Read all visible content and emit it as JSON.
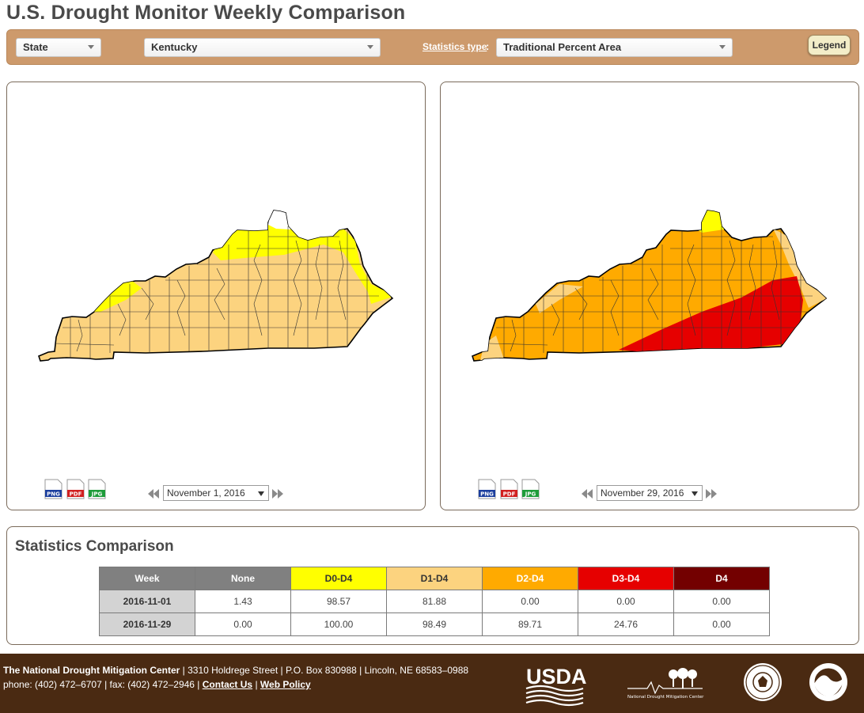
{
  "page": {
    "title": "U.S. Drought Monitor Weekly Comparison"
  },
  "toolbar": {
    "area_type": "State",
    "area_name": "Kentucky",
    "stats_type_label": "Statistics type",
    "stats_type_value": "Traditional Percent Area",
    "legend_button": "Legend"
  },
  "maps": [
    {
      "date": "November 1, 2016",
      "downloads": [
        "PNG",
        "PDF",
        "JPG"
      ]
    },
    {
      "date": "November 29, 2016",
      "downloads": [
        "PNG",
        "PDF",
        "JPG"
      ]
    }
  ],
  "stats": {
    "title": "Statistics Comparison",
    "headers": [
      "Week",
      "None",
      "D0-D4",
      "D1-D4",
      "D2-D4",
      "D3-D4",
      "D4"
    ],
    "header_colors": [
      "#808080",
      "#808080",
      "#ffff00",
      "#fcd37f",
      "#ffaa00",
      "#e60000",
      "#730000"
    ],
    "header_text_colors": [
      "#ffffff",
      "#ffffff",
      "#333333",
      "#333333",
      "#ffffff",
      "#ffffff",
      "#ffffff"
    ],
    "rows": [
      {
        "week": "2016-11-01",
        "values": [
          "1.43",
          "98.57",
          "81.88",
          "0.00",
          "0.00",
          "0.00"
        ]
      },
      {
        "week": "2016-11-29",
        "values": [
          "0.00",
          "100.00",
          "98.49",
          "89.71",
          "24.76",
          "0.00"
        ]
      }
    ]
  },
  "footer": {
    "org": "The National Drought Mitigation Center",
    "address": " | 3310 Holdrege Street | P.O. Box 830988 | Lincoln, NE 68583–0988",
    "phone": "phone: (402) 472–6707 | fax: (402) 472–2946 | ",
    "contact_link": "Contact Us",
    "separator": " | ",
    "policy_link": "Web Policy",
    "logos": {
      "usda": "USDA",
      "ndmc": "National Drought Mitigation Center"
    }
  },
  "colors": {
    "none": "#ffffff",
    "d0": "#ffff00",
    "d1": "#fcd37f",
    "d2": "#ffaa00",
    "d3": "#e60000",
    "d4": "#730000",
    "toolbar": "#cd9a6c",
    "footer": "#4a2a12"
  }
}
